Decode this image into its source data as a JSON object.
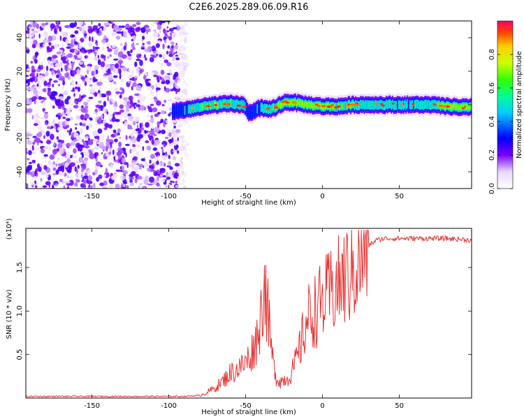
{
  "title": "C2E6.2025.289.06.09.R16",
  "chart_data": [
    {
      "type": "heatmap",
      "title": "C2E6.2025.289.06.09.R16",
      "xlabel": "Height of straight line (km)",
      "ylabel": "Frequency (Hz)",
      "xlim": [
        -193,
        97
      ],
      "ylim": [
        -50,
        50
      ],
      "xticks": [
        -150,
        -100,
        -50,
        0,
        50
      ],
      "yticks": [
        -40,
        -20,
        0,
        20,
        40
      ],
      "noise_region_x": [
        -193,
        -88
      ],
      "ridge": {
        "x": [
          -98,
          -90,
          -80,
          -70,
          -60,
          -52,
          -48,
          -44,
          -40,
          -36,
          -32,
          -28,
          -24,
          -20,
          -10,
          0,
          10,
          20,
          30,
          40,
          50,
          60,
          70,
          80,
          90,
          97
        ],
        "freq": [
          -4,
          -3,
          -1.5,
          0,
          0.5,
          0,
          -5,
          -3,
          -2,
          -3,
          -2,
          0,
          1.5,
          1.5,
          0,
          -1,
          -1,
          0,
          0,
          0,
          0,
          0,
          0,
          -1,
          -1.5,
          -1.5
        ],
        "amplitude": [
          0.35,
          0.5,
          0.7,
          0.75,
          0.7,
          0.6,
          0.4,
          0.45,
          0.6,
          0.7,
          0.75,
          0.8,
          0.85,
          0.85,
          0.85,
          0.8,
          0.75,
          0.7,
          0.65,
          0.6,
          0.55,
          0.55,
          0.6,
          0.85,
          0.95,
          0.98
        ]
      },
      "colorbar": {
        "label": "Normalized spectral amplitude",
        "range": [
          0.0,
          1.0
        ],
        "ticks": [
          "0.0",
          "0.2",
          "0.4",
          "0.6",
          "0.8"
        ]
      }
    },
    {
      "type": "line",
      "xlabel": "Height of straight line (km)",
      "ylabel": "SNR (10 * v/v)",
      "multiplier": "(x10⁴)",
      "xlim": [
        -193,
        97
      ],
      "ylim": [
        0,
        1.95
      ],
      "xticks": [
        -150,
        -100,
        -50,
        0,
        50
      ],
      "yticks": [
        "0.5",
        "1.0",
        "1.5"
      ],
      "color": "#e83030",
      "series": [
        {
          "name": "SNR",
          "x": [
            -193,
            -120,
            -90,
            -80,
            -75,
            -70,
            -65,
            -60,
            -55,
            -50,
            -46,
            -43,
            -40,
            -38,
            -36,
            -34,
            -32,
            -30,
            -28,
            -25,
            -22,
            -19,
            -16,
            -13,
            -10,
            -5,
            0,
            5,
            10,
            15,
            20,
            25,
            30,
            35,
            40,
            45,
            50,
            60,
            70,
            80,
            90,
            97
          ],
          "y": [
            0.02,
            0.02,
            0.02,
            0.03,
            0.07,
            0.12,
            0.2,
            0.3,
            0.35,
            0.42,
            0.55,
            0.7,
            1.0,
            1.45,
            1.1,
            0.7,
            0.4,
            0.25,
            0.2,
            0.22,
            0.25,
            0.35,
            0.5,
            0.72,
            0.95,
            1.05,
            1.15,
            1.25,
            1.35,
            1.45,
            1.55,
            1.68,
            1.76,
            1.82,
            1.84,
            1.84,
            1.84,
            1.84,
            1.84,
            1.84,
            1.83,
            1.82
          ]
        }
      ]
    }
  ]
}
